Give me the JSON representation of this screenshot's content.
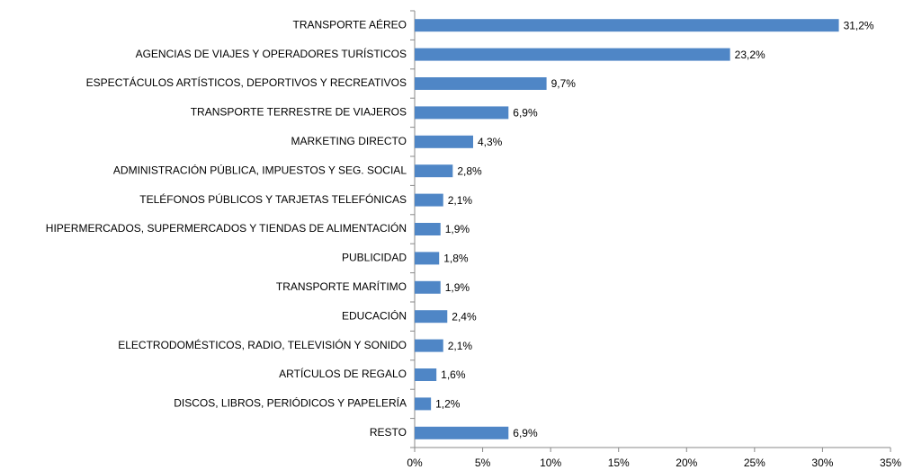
{
  "chart_data": {
    "type": "bar",
    "orientation": "horizontal",
    "categories": [
      "TRANSPORTE AÉREO",
      "AGENCIAS DE VIAJES Y OPERADORES TURÍSTICOS",
      "ESPECTÁCULOS ARTÍSTICOS, DEPORTIVOS Y RECREATIVOS",
      "TRANSPORTE TERRESTRE DE VIAJEROS",
      "MARKETING DIRECTO",
      "ADMINISTRACIÓN PÚBLICA, IMPUESTOS Y SEG. SOCIAL",
      "TELÉFONOS PÚBLICOS Y TARJETAS TELEFÓNICAS",
      "HIPERMERCADOS, SUPERMERCADOS Y TIENDAS DE ALIMENTACIÓN",
      "PUBLICIDAD",
      "TRANSPORTE MARÍTIMO",
      "EDUCACIÓN",
      "ELECTRODOMÉSTICOS, RADIO, TELEVISIÓN Y SONIDO",
      "ARTÍCULOS DE REGALO",
      "DISCOS, LIBROS, PERIÓDICOS Y PAPELERÍA",
      "RESTO"
    ],
    "values": [
      31.2,
      23.2,
      9.7,
      6.9,
      4.3,
      2.8,
      2.1,
      1.9,
      1.8,
      1.9,
      2.4,
      2.1,
      1.6,
      1.2,
      6.9
    ],
    "value_labels": [
      "31,2%",
      "23,2%",
      "9,7%",
      "6,9%",
      "4,3%",
      "2,8%",
      "2,1%",
      "1,9%",
      "1,8%",
      "1,9%",
      "2,4%",
      "2,1%",
      "1,6%",
      "1,2%",
      "6,9%"
    ],
    "color": "#4f86c6",
    "xlim": [
      0,
      35
    ],
    "xticks": [
      {
        "value": 0,
        "label": "0%"
      },
      {
        "value": 5,
        "label": "5%"
      },
      {
        "value": 10,
        "label": "10%"
      },
      {
        "value": 15,
        "label": "15%"
      },
      {
        "value": 20,
        "label": "20%"
      },
      {
        "value": 25,
        "label": "25%"
      },
      {
        "value": 30,
        "label": "30%"
      },
      {
        "value": 35,
        "label": "35%"
      }
    ],
    "grid": false
  }
}
